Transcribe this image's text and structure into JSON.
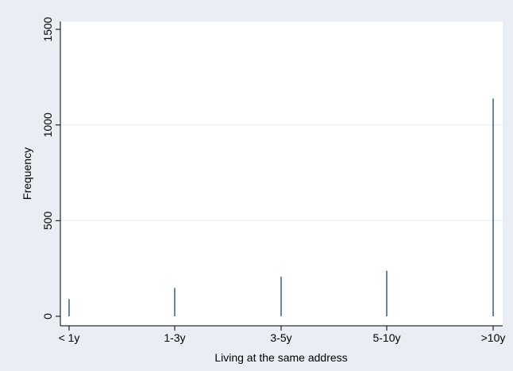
{
  "colors": {
    "outer_background": "#e8eef3",
    "plot_background": "#ffffff",
    "gridline": "#e6ecf0",
    "spike": "#1a476f",
    "axis": "#000000"
  },
  "chart_data": {
    "type": "bar",
    "style": "spike",
    "categories": [
      "< 1y",
      "1-3y",
      "3-5y",
      "5-10y",
      ">10y"
    ],
    "values": [
      90,
      148,
      207,
      238,
      1138
    ],
    "xlabel": "Living at the same address",
    "ylabel": "Frequency",
    "ylim": [
      0,
      1520
    ],
    "yticks": [
      0,
      500,
      1000,
      1500
    ],
    "ytick_labels": [
      "0",
      "500",
      "1000",
      "1500"
    ],
    "grid": true,
    "legend": "none"
  }
}
